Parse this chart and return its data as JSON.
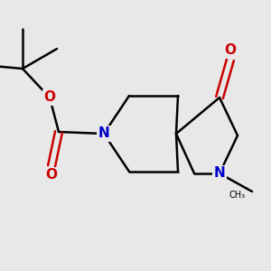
{
  "bg_color": "#e8e8e8",
  "bond_color": "#000000",
  "nitrogen_color": "#0000cc",
  "oxygen_color": "#cc0000",
  "line_width": 1.8,
  "figsize": [
    3.0,
    3.0
  ],
  "dpi": 100,
  "xlim": [
    0,
    300
  ],
  "ylim": [
    0,
    300
  ]
}
